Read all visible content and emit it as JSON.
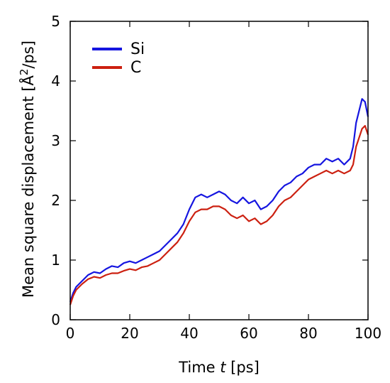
{
  "chart_data": {
    "type": "line",
    "xlabel": {
      "prefix": "Time ",
      "var": "t",
      "suffix": " [ps]"
    },
    "ylabel": {
      "main": "Mean square displacement [",
      "angstrom": "Å",
      "sup": "2",
      "suffix": "/ps]"
    },
    "xlim": [
      0,
      100
    ],
    "ylim": [
      0,
      5
    ],
    "xticks": [
      "0",
      "20",
      "40",
      "60",
      "80",
      "100"
    ],
    "yticks": [
      "0",
      "1",
      "2",
      "3",
      "4",
      "5"
    ],
    "grid": false,
    "legend_position": "top-left",
    "series": [
      {
        "name": "Si",
        "color": "#1515e0",
        "x": [
          0,
          1,
          2,
          4,
          6,
          8,
          10,
          12,
          14,
          16,
          18,
          20,
          22,
          24,
          26,
          28,
          30,
          32,
          34,
          36,
          38,
          40,
          42,
          44,
          46,
          48,
          50,
          52,
          54,
          56,
          58,
          60,
          62,
          64,
          66,
          68,
          70,
          72,
          74,
          76,
          78,
          80,
          82,
          84,
          86,
          88,
          90,
          92,
          94,
          95,
          96,
          97,
          98,
          99,
          100
        ],
        "values": [
          0.3,
          0.45,
          0.55,
          0.65,
          0.75,
          0.8,
          0.78,
          0.85,
          0.9,
          0.88,
          0.95,
          0.98,
          0.95,
          1.0,
          1.05,
          1.1,
          1.15,
          1.25,
          1.35,
          1.45,
          1.6,
          1.85,
          2.05,
          2.1,
          2.05,
          2.1,
          2.15,
          2.1,
          2.0,
          1.95,
          2.05,
          1.95,
          2.0,
          1.85,
          1.9,
          2.0,
          2.15,
          2.25,
          2.3,
          2.4,
          2.45,
          2.55,
          2.6,
          2.6,
          2.7,
          2.65,
          2.7,
          2.6,
          2.7,
          2.9,
          3.3,
          3.5,
          3.7,
          3.65,
          3.4
        ]
      },
      {
        "name": "C",
        "color": "#cc2010",
        "x": [
          0,
          1,
          2,
          4,
          6,
          8,
          10,
          12,
          14,
          16,
          18,
          20,
          22,
          24,
          26,
          28,
          30,
          32,
          34,
          36,
          38,
          40,
          42,
          44,
          46,
          48,
          50,
          52,
          54,
          56,
          58,
          60,
          62,
          64,
          66,
          68,
          70,
          72,
          74,
          76,
          78,
          80,
          82,
          84,
          86,
          88,
          90,
          92,
          94,
          95,
          96,
          97,
          98,
          99,
          100
        ],
        "values": [
          0.25,
          0.4,
          0.5,
          0.6,
          0.68,
          0.72,
          0.7,
          0.75,
          0.78,
          0.78,
          0.82,
          0.85,
          0.83,
          0.88,
          0.9,
          0.95,
          1.0,
          1.1,
          1.2,
          1.3,
          1.45,
          1.65,
          1.8,
          1.85,
          1.85,
          1.9,
          1.9,
          1.85,
          1.75,
          1.7,
          1.75,
          1.65,
          1.7,
          1.6,
          1.65,
          1.75,
          1.9,
          2.0,
          2.05,
          2.15,
          2.25,
          2.35,
          2.4,
          2.45,
          2.5,
          2.45,
          2.5,
          2.45,
          2.5,
          2.6,
          2.9,
          3.05,
          3.2,
          3.25,
          3.1
        ]
      }
    ]
  }
}
